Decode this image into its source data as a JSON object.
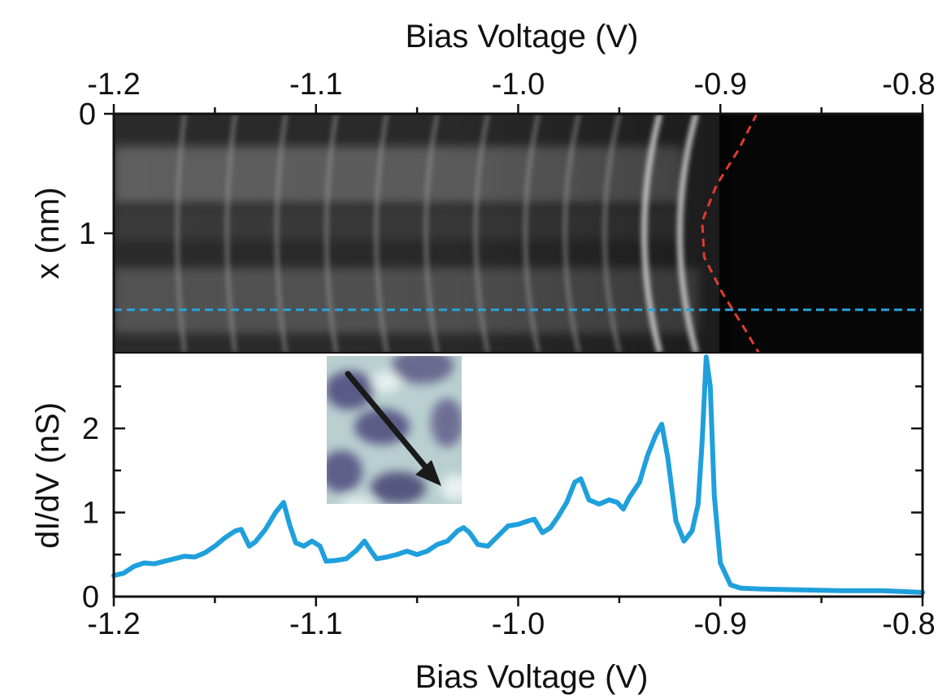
{
  "chart_data": [
    {
      "type": "heatmap",
      "xlabel": "Bias Voltage (V)",
      "ylabel": "x (nm)",
      "xlim": [
        -1.2,
        -0.8
      ],
      "ylim": [
        0,
        2
      ],
      "x_ticks": [
        "-1.2",
        "-1.1",
        "-1.0",
        "-0.9",
        "-0.8"
      ],
      "y_ticks": [
        "0",
        "1"
      ],
      "colormap": "grayscale",
      "band_edge_curve": {
        "color": "#e03c31",
        "style": "dashed",
        "x": [
          -0.882,
          -0.891,
          -0.902,
          -0.909,
          -0.908,
          -0.899,
          -0.888,
          -0.881
        ],
        "y": [
          0.0,
          0.3,
          0.6,
          0.9,
          1.2,
          1.5,
          1.8,
          2.0
        ]
      },
      "cut_line": {
        "color": "#29a3dd",
        "style": "dashed",
        "x_nm": 1.64
      }
    },
    {
      "type": "line",
      "xlabel": "Bias Voltage (V)",
      "ylabel": "dI/dV (nS)",
      "xlim": [
        -1.2,
        -0.8
      ],
      "ylim": [
        0,
        2.9
      ],
      "x_ticks": [
        "-1.2",
        "-1.1",
        "-1.0",
        "-0.9",
        "-0.8"
      ],
      "y_ticks": [
        "0",
        "1",
        "2"
      ],
      "series": [
        {
          "color": "#1fa0dc",
          "x": [
            -1.2,
            -1.195,
            -1.19,
            -1.185,
            -1.18,
            -1.175,
            -1.17,
            -1.165,
            -1.16,
            -1.155,
            -1.15,
            -1.145,
            -1.14,
            -1.137,
            -1.133,
            -1.13,
            -1.125,
            -1.12,
            -1.116,
            -1.113,
            -1.11,
            -1.106,
            -1.102,
            -1.098,
            -1.095,
            -1.09,
            -1.085,
            -1.08,
            -1.076,
            -1.073,
            -1.07,
            -1.065,
            -1.06,
            -1.055,
            -1.05,
            -1.045,
            -1.04,
            -1.035,
            -1.03,
            -1.027,
            -1.024,
            -1.02,
            -1.015,
            -1.01,
            -1.005,
            -1.0,
            -0.995,
            -0.992,
            -0.988,
            -0.984,
            -0.98,
            -0.976,
            -0.972,
            -0.969,
            -0.965,
            -0.96,
            -0.955,
            -0.951,
            -0.948,
            -0.945,
            -0.94,
            -0.936,
            -0.932,
            -0.929,
            -0.926,
            -0.922,
            -0.918,
            -0.914,
            -0.911,
            -0.909,
            -0.907,
            -0.905,
            -0.903,
            -0.9,
            -0.895,
            -0.89,
            -0.88,
            -0.86,
            -0.84,
            -0.82,
            -0.8
          ],
          "y": [
            0.25,
            0.28,
            0.36,
            0.4,
            0.39,
            0.42,
            0.45,
            0.48,
            0.47,
            0.52,
            0.6,
            0.7,
            0.78,
            0.8,
            0.6,
            0.65,
            0.8,
            1.0,
            1.12,
            0.85,
            0.64,
            0.6,
            0.66,
            0.6,
            0.42,
            0.43,
            0.45,
            0.55,
            0.66,
            0.55,
            0.45,
            0.47,
            0.5,
            0.54,
            0.5,
            0.54,
            0.62,
            0.66,
            0.78,
            0.82,
            0.76,
            0.62,
            0.6,
            0.72,
            0.84,
            0.86,
            0.9,
            0.92,
            0.76,
            0.82,
            0.96,
            1.12,
            1.36,
            1.4,
            1.15,
            1.1,
            1.15,
            1.12,
            1.04,
            1.18,
            1.36,
            1.68,
            1.92,
            2.05,
            1.65,
            0.9,
            0.66,
            0.78,
            1.1,
            1.85,
            2.85,
            2.5,
            1.2,
            0.4,
            0.14,
            0.1,
            0.09,
            0.08,
            0.07,
            0.07,
            0.05
          ]
        }
      ]
    }
  ]
}
